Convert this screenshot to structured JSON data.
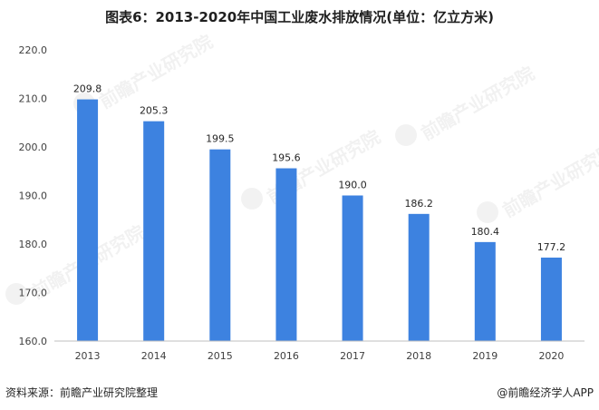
{
  "title": "图表6：2013-2020年中国工业废水排放情况(单位：亿立方米)",
  "watermark": "前瞻产业研究院",
  "footer": {
    "source": "资料来源：前瞻产业研究院整理",
    "brand": "@前瞻经济学人APP"
  },
  "colors": {
    "bar": "#3d82e0"
  },
  "chart_data": {
    "type": "bar",
    "title": "图表6：2013-2020年中国工业废水排放情况(单位：亿立方米)",
    "xlabel": "",
    "ylabel": "",
    "categories": [
      "2013",
      "2014",
      "2015",
      "2016",
      "2017",
      "2018",
      "2019",
      "2020"
    ],
    "values": [
      209.8,
      205.3,
      199.5,
      195.6,
      190.0,
      186.2,
      180.4,
      177.2
    ],
    "value_labels": [
      "209.8",
      "205.3",
      "199.5",
      "195.6",
      "190.0",
      "186.2",
      "180.4",
      "177.2"
    ],
    "ylim": [
      160,
      220
    ],
    "yticks": [
      "160.0",
      "170.0",
      "180.0",
      "190.0",
      "200.0",
      "210.0",
      "220.0"
    ],
    "grid": false,
    "legend": "none"
  }
}
